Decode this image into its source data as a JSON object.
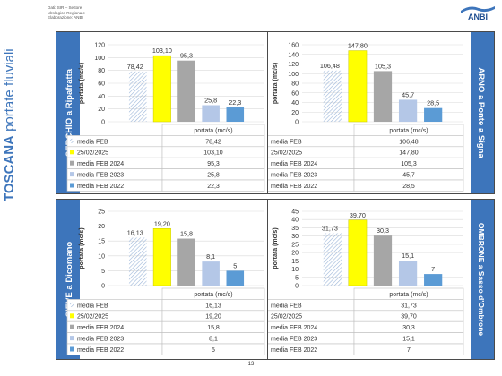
{
  "page": {
    "side_title_bold": "TOSCANA",
    "side_title_light": " portate fluviali",
    "source_lines": [
      "Dati: SIR – Settore",
      "Idrologico Regionale",
      "Elaborazione: ANBI"
    ],
    "logo_text": "ANBI",
    "page_number": "13"
  },
  "colors": {
    "band": "#3d75bb",
    "media_feb_hatch": "#9bb5d8",
    "current": "#ffff00",
    "feb2024": "#a6a6a6",
    "feb2023": "#b4c7e7",
    "feb2022": "#5b9bd5",
    "title_blue": "#3d75bb"
  },
  "chart_data": [
    {
      "type": "bar",
      "station": "SERCHIO a Ripafratta",
      "ylabel": "portata (mc/s)",
      "table_header": "portata (mc/s)",
      "ylim": [
        0,
        120
      ],
      "yticks": [
        0,
        20,
        40,
        60,
        80,
        100,
        120
      ],
      "series": [
        {
          "name": "media FEB",
          "value": 78.42,
          "label": "78,42"
        },
        {
          "name": "25/02/2025",
          "value": 103.1,
          "label": "103,10"
        },
        {
          "name": "media FEB 2024",
          "value": 95.3,
          "label": "95,3"
        },
        {
          "name": "media FEB 2023",
          "value": 25.8,
          "label": "25,8"
        },
        {
          "name": "media FEB 2022",
          "value": 22.3,
          "label": "22,3"
        }
      ]
    },
    {
      "type": "bar",
      "station": "ARNO a Ponte a Signa",
      "ylabel": "portata (mc/s)",
      "table_header": "portata (mc/s)",
      "ylim": [
        0,
        160
      ],
      "yticks": [
        0,
        20,
        40,
        60,
        80,
        100,
        120,
        140,
        160
      ],
      "series": [
        {
          "name": "media FEB",
          "value": 106.48,
          "label": "106,48"
        },
        {
          "name": "25/02/2025",
          "value": 147.8,
          "label": "147,80"
        },
        {
          "name": "media FEB 2024",
          "value": 105.3,
          "label": "105,3"
        },
        {
          "name": "media FEB 2023",
          "value": 45.7,
          "label": "45,7"
        },
        {
          "name": "media FEB 2022",
          "value": 28.5,
          "label": "28,5"
        }
      ]
    },
    {
      "type": "bar",
      "station": "SIEVE a Dicomano",
      "ylabel": "portata (mc/s)",
      "table_header": "portata (mc/s)",
      "ylim": [
        0,
        25
      ],
      "yticks": [
        0,
        5,
        10,
        15,
        20,
        25
      ],
      "series": [
        {
          "name": "media FEB",
          "value": 16.13,
          "label": "16,13"
        },
        {
          "name": "25/02/2025",
          "value": 19.2,
          "label": "19,20"
        },
        {
          "name": "media FEB 2024",
          "value": 15.8,
          "label": "15,8"
        },
        {
          "name": "media FEB 2023",
          "value": 8.1,
          "label": "8,1"
        },
        {
          "name": "media FEB 2022",
          "value": 5,
          "label": "5"
        }
      ]
    },
    {
      "type": "bar",
      "station": "OMBRONE a Sasso d'Ombrone",
      "ylabel": "portata (mc/s)",
      "table_header": "portata (mc/s)",
      "ylim": [
        0,
        45
      ],
      "yticks": [
        0,
        5,
        10,
        15,
        20,
        25,
        30,
        35,
        40,
        45
      ],
      "series": [
        {
          "name": "media FEB",
          "value": 31.73,
          "label": "31,73"
        },
        {
          "name": "25/02/2025",
          "value": 39.7,
          "label": "39,70"
        },
        {
          "name": "media FEB 2024",
          "value": 30.3,
          "label": "30,3"
        },
        {
          "name": "media FEB 2023",
          "value": 15.1,
          "label": "15,1"
        },
        {
          "name": "media FEB 2022",
          "value": 7,
          "label": "7"
        }
      ]
    }
  ]
}
